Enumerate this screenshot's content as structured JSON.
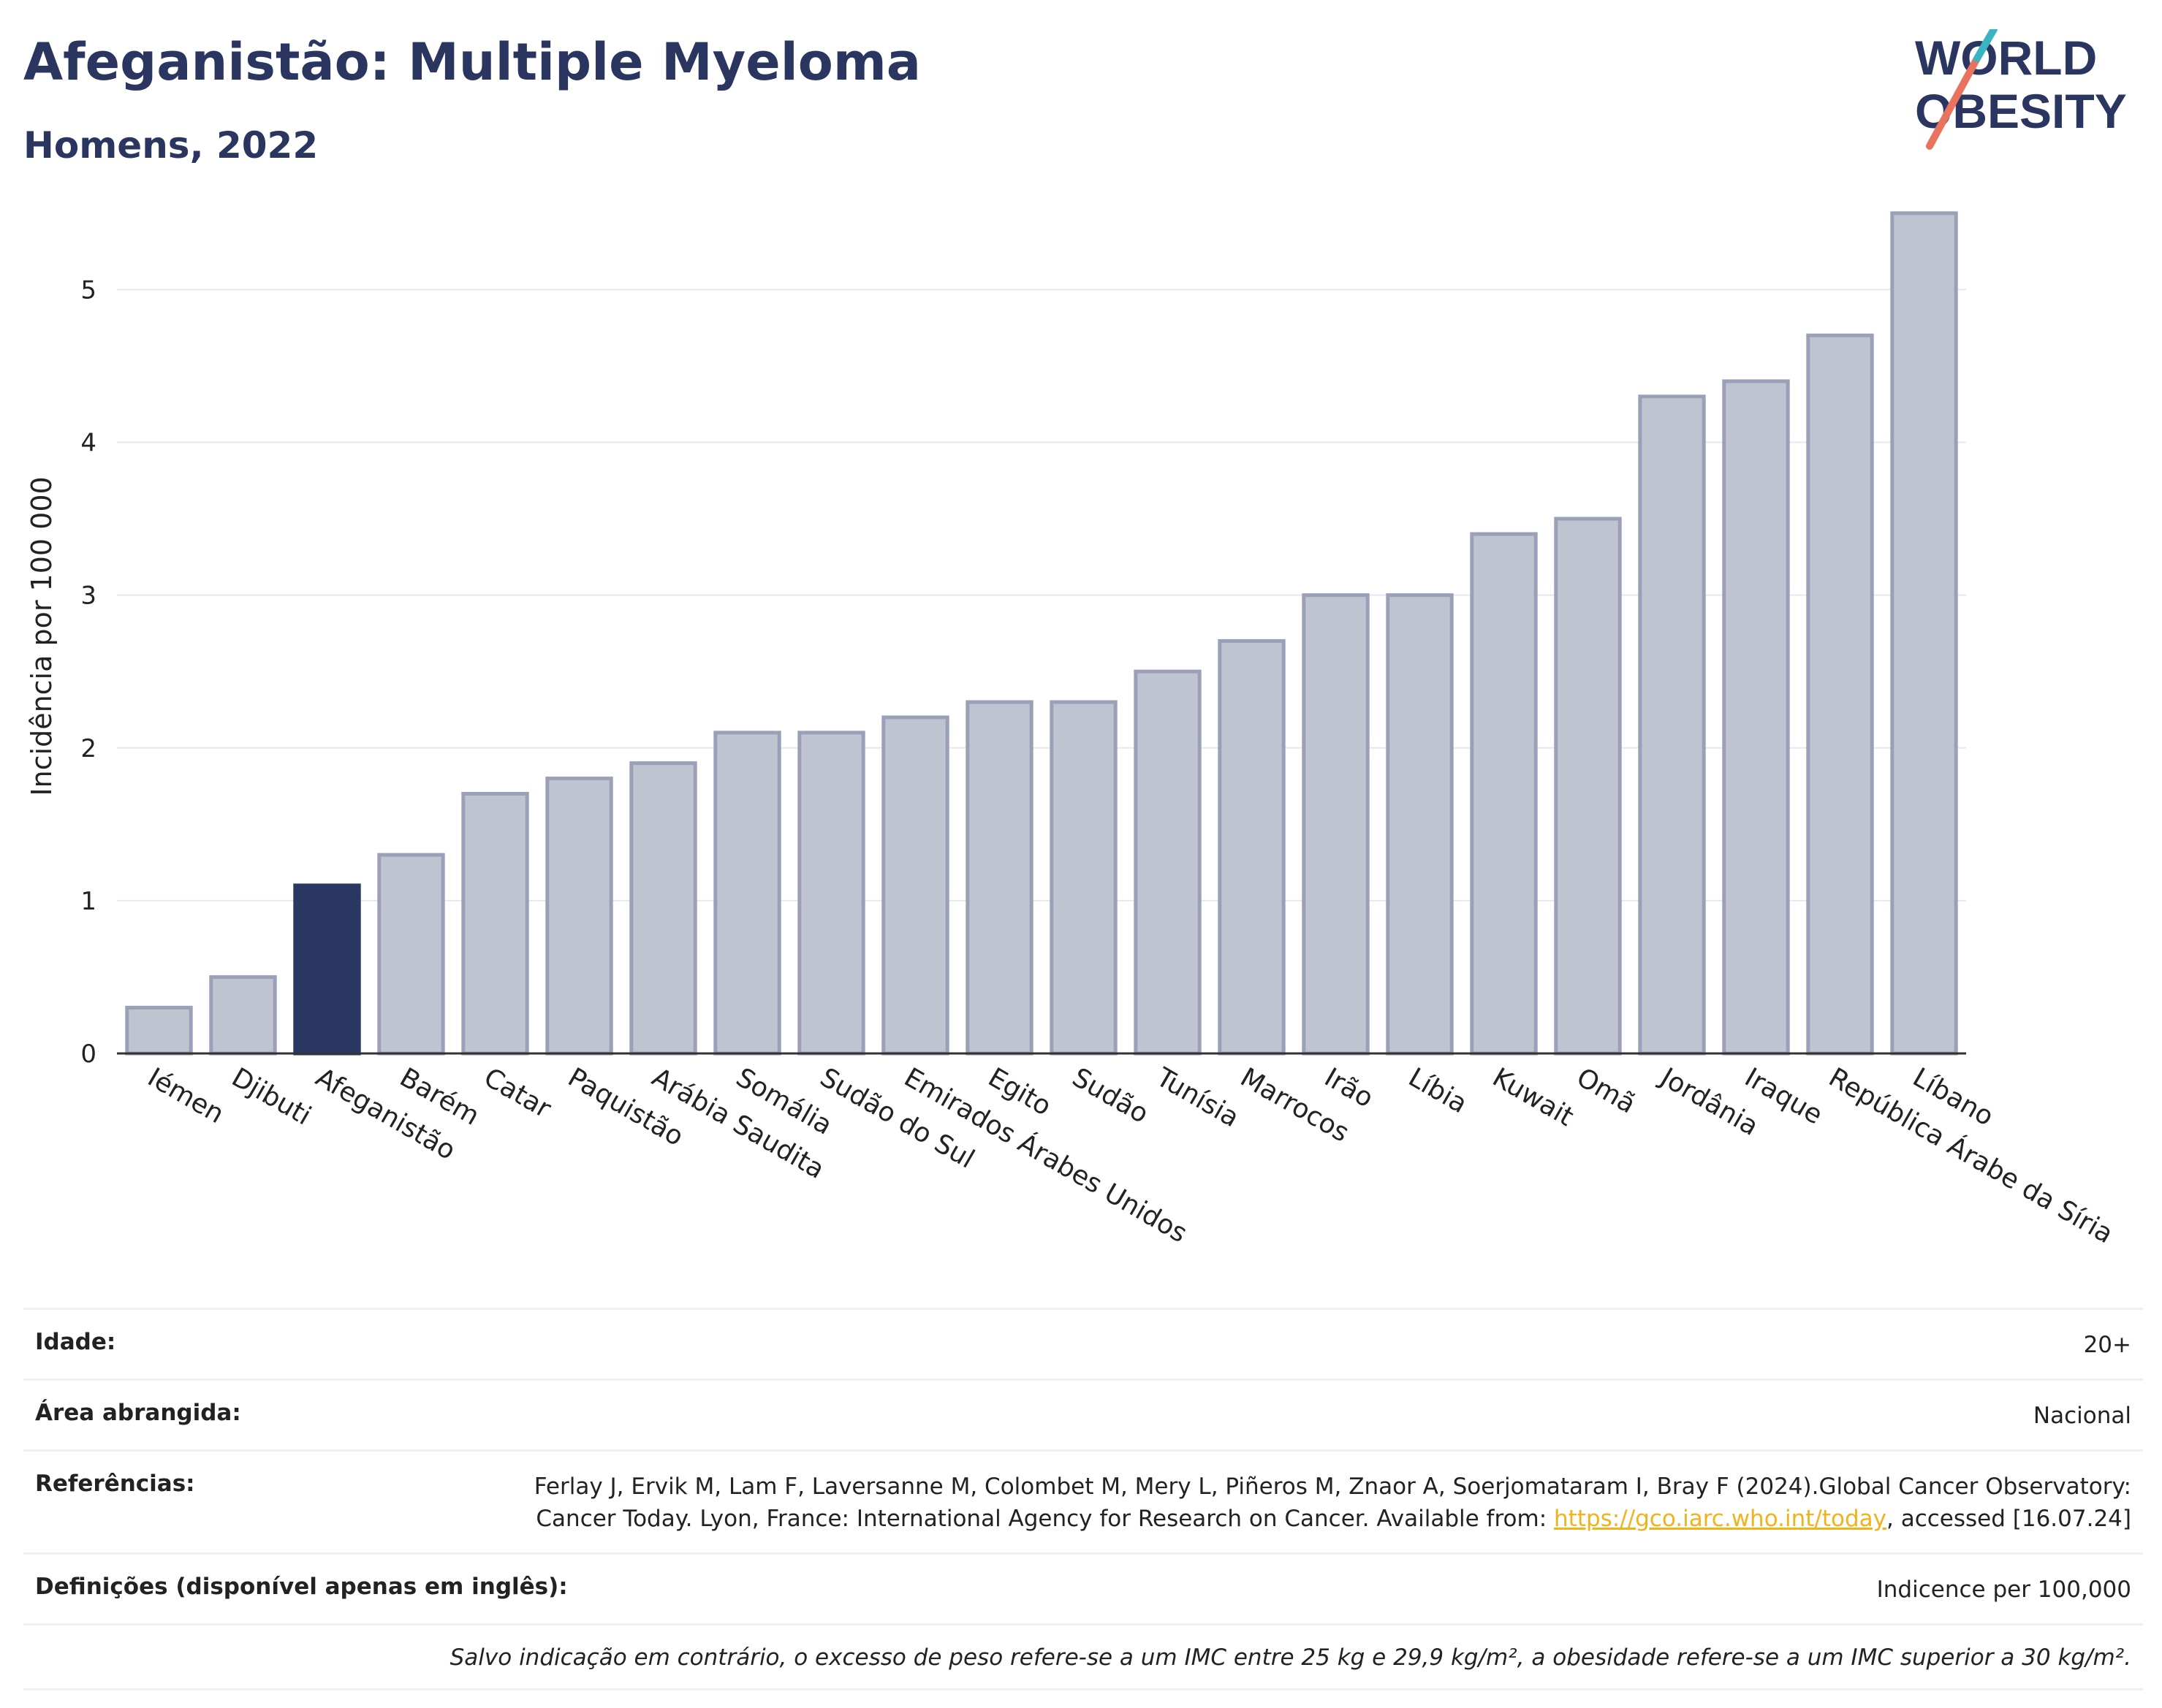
{
  "header": {
    "title": "Afeganistão: Multiple Myeloma",
    "subtitle": "Homens, 2022"
  },
  "logo": {
    "line1": "WORLD",
    "line2": "OBESITY",
    "accent_color": "#e8735f",
    "accent_color2": "#3bb4c1"
  },
  "colors": {
    "highlight": "#2b3763",
    "bar": "#c0c3d0",
    "bar_border": "#9aa0b8",
    "grid": "#e6e8f0"
  },
  "chart_data": {
    "type": "bar",
    "ylabel": "Incidência por 100 000",
    "ylim": [
      0,
      5.7
    ],
    "yticks": [
      0,
      1,
      2,
      3,
      4,
      5
    ],
    "highlight": "Afeganistão",
    "categories": [
      "Iémen",
      "Djibuti",
      "Afeganistão",
      "Barém",
      "Catar",
      "Paquistão",
      "Arábia Saudita",
      "Somália",
      "Sudão do Sul",
      "Emirados Árabes Unidos",
      "Egito",
      "Sudão",
      "Tunísia",
      "Marrocos",
      "Irão",
      "Líbia",
      "Kuwait",
      "Omã",
      "Jordânia",
      "Iraque",
      "República Árabe da Síria",
      "Líbano"
    ],
    "values": [
      0.3,
      0.5,
      1.1,
      1.3,
      1.7,
      1.8,
      1.9,
      2.1,
      2.1,
      2.2,
      2.3,
      2.3,
      2.5,
      2.7,
      3.0,
      3.0,
      3.4,
      3.5,
      4.3,
      4.4,
      4.7,
      5.5
    ]
  },
  "meta": {
    "age_label": "Idade:",
    "age_value": "20+",
    "area_label": "Área abrangida:",
    "area_value": "Nacional",
    "refs_label": "Referências:",
    "refs_text": "Ferlay J, Ervik M, Lam F, Laversanne M, Colombet M, Mery L, Piñeros M, Znaor A, Soerjomataram I, Bray F (2024).Global Cancer Observatory: Cancer Today. Lyon, France: International Agency for Research on Cancer. Available from:",
    "refs_link": "https://gco.iarc.who.int/today",
    "refs_tail": ", accessed [16.07.24]",
    "defs_label": "Definições (disponível apenas em inglês):",
    "defs_value": "Indicence per 100,000",
    "note": "Salvo indicação em contrário, o excesso de peso refere-se a um IMC entre 25 kg e 29,9 kg/m², a obesidade refere-se a um IMC superior a 30 kg/m²."
  }
}
